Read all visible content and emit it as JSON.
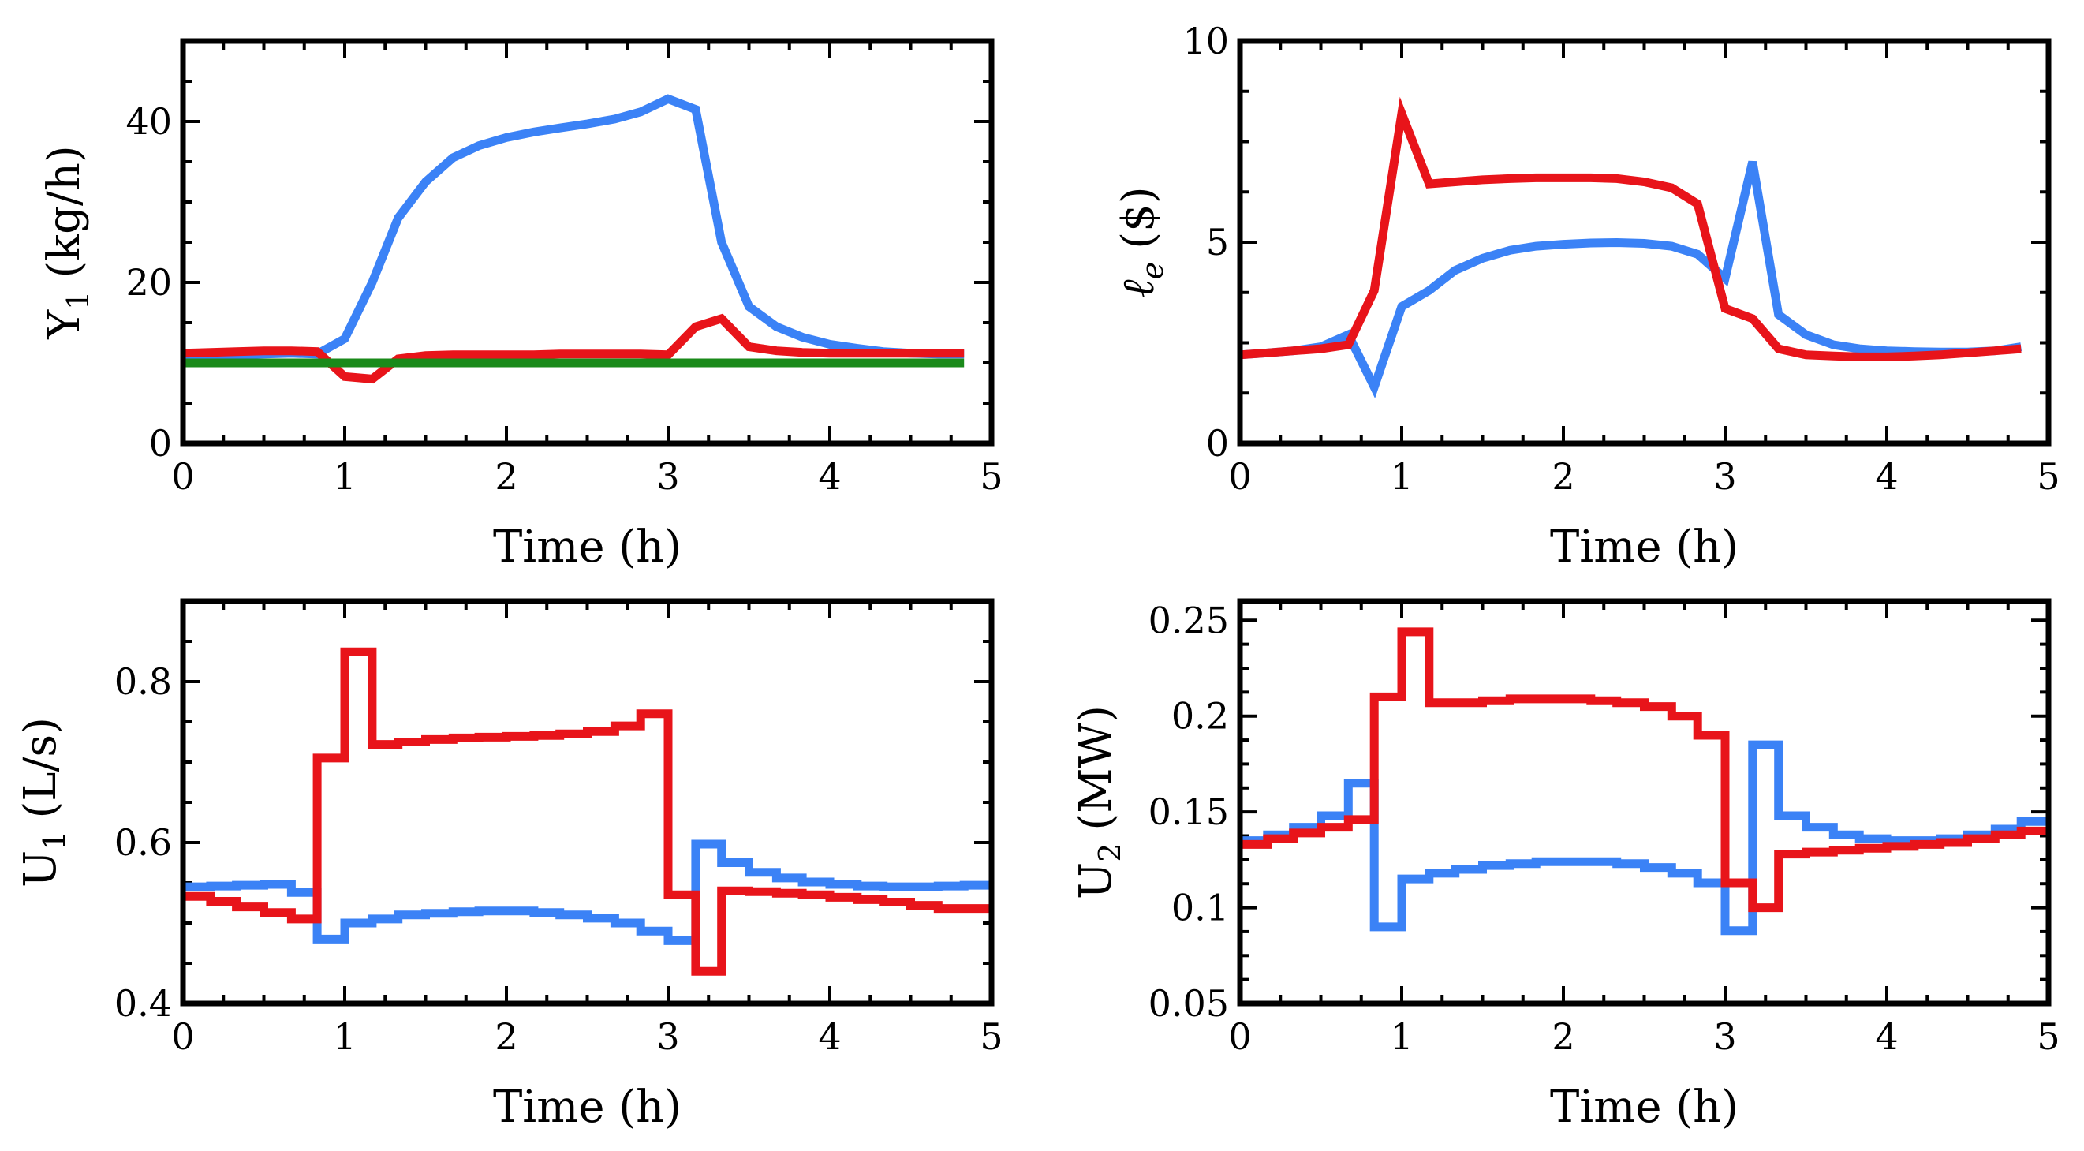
{
  "chart_data": [
    {
      "id": "y1",
      "type": "line",
      "xlabel": "Time (h)",
      "ylabel": "Y",
      "ylabel_sub": "1",
      "ylabel_unit": "(kg/h)",
      "xlim": [
        0,
        5
      ],
      "ylim": [
        0,
        50
      ],
      "xticks": [
        0,
        1,
        2,
        3,
        4,
        5
      ],
      "yticks": [
        0,
        20,
        40
      ],
      "xtick_labels": [
        "0",
        "1",
        "2",
        "3",
        "4",
        "5"
      ],
      "ytick_labels": [
        "0",
        "20",
        "40"
      ],
      "series": [
        {
          "name": "blue",
          "color": "#3b82f6",
          "step": false,
          "x": [
            0,
            0.17,
            0.33,
            0.5,
            0.67,
            0.83,
            1.0,
            1.17,
            1.33,
            1.5,
            1.67,
            1.83,
            2.0,
            2.17,
            2.33,
            2.5,
            2.67,
            2.83,
            3.0,
            3.17,
            3.33,
            3.5,
            3.67,
            3.83,
            4.0,
            4.17,
            4.33,
            4.5,
            4.67,
            4.83
          ],
          "y": [
            11.0,
            11.0,
            11.0,
            11.1,
            11.2,
            11.1,
            13.0,
            20.0,
            28.0,
            32.5,
            35.5,
            37.0,
            38.0,
            38.7,
            39.2,
            39.7,
            40.3,
            41.2,
            42.8,
            41.5,
            25.0,
            17.0,
            14.5,
            13.2,
            12.3,
            11.8,
            11.4,
            11.2,
            11.1,
            11.1
          ]
        },
        {
          "name": "red",
          "color": "#e8141a",
          "step": false,
          "x": [
            0,
            0.17,
            0.33,
            0.5,
            0.67,
            0.83,
            1.0,
            1.17,
            1.33,
            1.5,
            1.67,
            1.83,
            2.0,
            2.17,
            2.33,
            2.5,
            2.67,
            2.83,
            3.0,
            3.17,
            3.33,
            3.5,
            3.67,
            3.83,
            4.0,
            4.17,
            4.33,
            4.5,
            4.67,
            4.83
          ],
          "y": [
            11.2,
            11.3,
            11.4,
            11.5,
            11.5,
            11.4,
            8.3,
            8.0,
            10.5,
            10.9,
            11.0,
            11.0,
            11.0,
            11.0,
            11.1,
            11.1,
            11.1,
            11.1,
            11.0,
            14.5,
            15.5,
            12.0,
            11.5,
            11.3,
            11.2,
            11.2,
            11.2,
            11.2,
            11.2,
            11.2
          ]
        },
        {
          "name": "green",
          "color": "#1a8a1a",
          "step": false,
          "x": [
            0,
            4.83
          ],
          "y": [
            10.0,
            10.0
          ]
        }
      ]
    },
    {
      "id": "le",
      "type": "line",
      "xlabel": "Time (h)",
      "ylabel": "ℓ",
      "ylabel_sub": "e",
      "ylabel_unit": "($)",
      "xlim": [
        0,
        5
      ],
      "ylim": [
        0,
        10
      ],
      "xticks": [
        0,
        1,
        2,
        3,
        4,
        5
      ],
      "yticks": [
        0,
        5,
        10
      ],
      "xtick_labels": [
        "0",
        "1",
        "2",
        "3",
        "4",
        "5"
      ],
      "ytick_labels": [
        "0",
        "5",
        "10"
      ],
      "series": [
        {
          "name": "blue",
          "color": "#3b82f6",
          "step": false,
          "x": [
            0,
            0.17,
            0.33,
            0.5,
            0.67,
            0.83,
            1.0,
            1.17,
            1.33,
            1.5,
            1.67,
            1.83,
            2.0,
            2.17,
            2.33,
            2.5,
            2.67,
            2.83,
            3.0,
            3.17,
            3.33,
            3.5,
            3.67,
            3.83,
            4.0,
            4.17,
            4.33,
            4.5,
            4.67,
            4.83
          ],
          "y": [
            2.2,
            2.25,
            2.3,
            2.4,
            2.7,
            1.4,
            3.4,
            3.8,
            4.3,
            4.6,
            4.8,
            4.9,
            4.95,
            4.98,
            4.99,
            4.97,
            4.9,
            4.7,
            4.1,
            7.0,
            3.2,
            2.7,
            2.45,
            2.35,
            2.3,
            2.28,
            2.27,
            2.27,
            2.3,
            2.4
          ]
        },
        {
          "name": "red",
          "color": "#e8141a",
          "step": false,
          "x": [
            0,
            0.17,
            0.33,
            0.5,
            0.67,
            0.83,
            1.0,
            1.17,
            1.33,
            1.5,
            1.67,
            1.83,
            2.0,
            2.17,
            2.33,
            2.5,
            2.67,
            2.83,
            3.0,
            3.17,
            3.33,
            3.5,
            3.67,
            3.83,
            4.0,
            4.17,
            4.33,
            4.5,
            4.67,
            4.83
          ],
          "y": [
            2.2,
            2.25,
            2.3,
            2.35,
            2.45,
            3.8,
            8.2,
            6.45,
            6.5,
            6.55,
            6.58,
            6.6,
            6.6,
            6.6,
            6.58,
            6.5,
            6.35,
            5.95,
            3.35,
            3.1,
            2.35,
            2.2,
            2.17,
            2.15,
            2.15,
            2.17,
            2.2,
            2.25,
            2.3,
            2.35
          ]
        }
      ]
    },
    {
      "id": "u1",
      "type": "line",
      "xlabel": "Time (h)",
      "ylabel": "U",
      "ylabel_sub": "1",
      "ylabel_unit": "(L/s)",
      "xlim": [
        0,
        5
      ],
      "ylim": [
        0.4,
        0.9
      ],
      "xticks": [
        0,
        1,
        2,
        3,
        4,
        5
      ],
      "yticks": [
        0.4,
        0.6,
        0.8
      ],
      "xtick_labels": [
        "0",
        "1",
        "2",
        "3",
        "4",
        "5"
      ],
      "ytick_labels": [
        "0.4",
        "0.6",
        "0.8"
      ],
      "series": [
        {
          "name": "blue",
          "color": "#3b82f6",
          "step": true,
          "x": [
            0,
            0.17,
            0.33,
            0.5,
            0.67,
            0.83,
            1.0,
            1.17,
            1.33,
            1.5,
            1.67,
            1.83,
            2.0,
            2.17,
            2.33,
            2.5,
            2.67,
            2.83,
            3.0,
            3.17,
            3.33,
            3.5,
            3.67,
            3.83,
            4.0,
            4.17,
            4.33,
            4.5,
            4.67,
            4.83
          ],
          "y": [
            0.545,
            0.546,
            0.547,
            0.548,
            0.538,
            0.48,
            0.5,
            0.505,
            0.51,
            0.512,
            0.514,
            0.515,
            0.515,
            0.513,
            0.51,
            0.506,
            0.5,
            0.49,
            0.478,
            0.598,
            0.575,
            0.563,
            0.556,
            0.551,
            0.548,
            0.546,
            0.545,
            0.545,
            0.546,
            0.547
          ]
        },
        {
          "name": "red",
          "color": "#e8141a",
          "step": true,
          "x": [
            0,
            0.17,
            0.33,
            0.5,
            0.67,
            0.83,
            0.92,
            1.0,
            1.17,
            1.33,
            1.5,
            1.67,
            1.83,
            2.0,
            2.17,
            2.33,
            2.5,
            2.67,
            2.83,
            3.0,
            3.17,
            3.33,
            3.5,
            3.67,
            3.83,
            4.0,
            4.17,
            4.33,
            4.5,
            4.67,
            4.83
          ],
          "y": [
            0.533,
            0.527,
            0.52,
            0.513,
            0.505,
            0.705,
            0.705,
            0.837,
            0.722,
            0.725,
            0.728,
            0.73,
            0.731,
            0.732,
            0.733,
            0.735,
            0.738,
            0.745,
            0.76,
            0.535,
            0.44,
            0.54,
            0.539,
            0.537,
            0.535,
            0.532,
            0.529,
            0.526,
            0.522,
            0.518,
            0.518
          ]
        }
      ]
    },
    {
      "id": "u2",
      "type": "line",
      "xlabel": "Time (h)",
      "ylabel": "U",
      "ylabel_sub": "2",
      "ylabel_unit": "(MW)",
      "xlim": [
        0,
        5
      ],
      "ylim": [
        0.05,
        0.26
      ],
      "xticks": [
        0,
        1,
        2,
        3,
        4,
        5
      ],
      "yticks": [
        0.05,
        0.1,
        0.15,
        0.2,
        0.25
      ],
      "xtick_labels": [
        "0",
        "1",
        "2",
        "3",
        "4",
        "5"
      ],
      "ytick_labels": [
        "0.05",
        "0.1",
        "0.15",
        "0.2",
        "0.25"
      ],
      "series": [
        {
          "name": "blue",
          "color": "#3b82f6",
          "step": true,
          "x": [
            0,
            0.17,
            0.33,
            0.5,
            0.67,
            0.83,
            1.0,
            1.17,
            1.33,
            1.5,
            1.67,
            1.83,
            2.0,
            2.17,
            2.33,
            2.5,
            2.67,
            2.83,
            3.0,
            3.17,
            3.33,
            3.5,
            3.67,
            3.83,
            4.0,
            4.17,
            4.33,
            4.5,
            4.67,
            4.83
          ],
          "y": [
            0.135,
            0.138,
            0.142,
            0.148,
            0.165,
            0.09,
            0.115,
            0.118,
            0.12,
            0.122,
            0.123,
            0.124,
            0.124,
            0.124,
            0.123,
            0.121,
            0.118,
            0.113,
            0.088,
            0.185,
            0.148,
            0.142,
            0.138,
            0.136,
            0.135,
            0.135,
            0.136,
            0.138,
            0.141,
            0.145
          ]
        },
        {
          "name": "red",
          "color": "#e8141a",
          "step": true,
          "x": [
            0,
            0.17,
            0.33,
            0.5,
            0.67,
            0.83,
            1.0,
            1.17,
            1.33,
            1.5,
            1.67,
            1.83,
            2.0,
            2.17,
            2.33,
            2.5,
            2.67,
            2.83,
            3.0,
            3.17,
            3.33,
            3.5,
            3.67,
            3.83,
            4.0,
            4.17,
            4.33,
            4.5,
            4.67,
            4.83
          ],
          "y": [
            0.133,
            0.136,
            0.139,
            0.142,
            0.146,
            0.21,
            0.244,
            0.207,
            0.207,
            0.208,
            0.209,
            0.209,
            0.209,
            0.208,
            0.207,
            0.205,
            0.2,
            0.19,
            0.113,
            0.1,
            0.128,
            0.129,
            0.13,
            0.131,
            0.132,
            0.133,
            0.134,
            0.136,
            0.138,
            0.14
          ]
        }
      ]
    }
  ]
}
